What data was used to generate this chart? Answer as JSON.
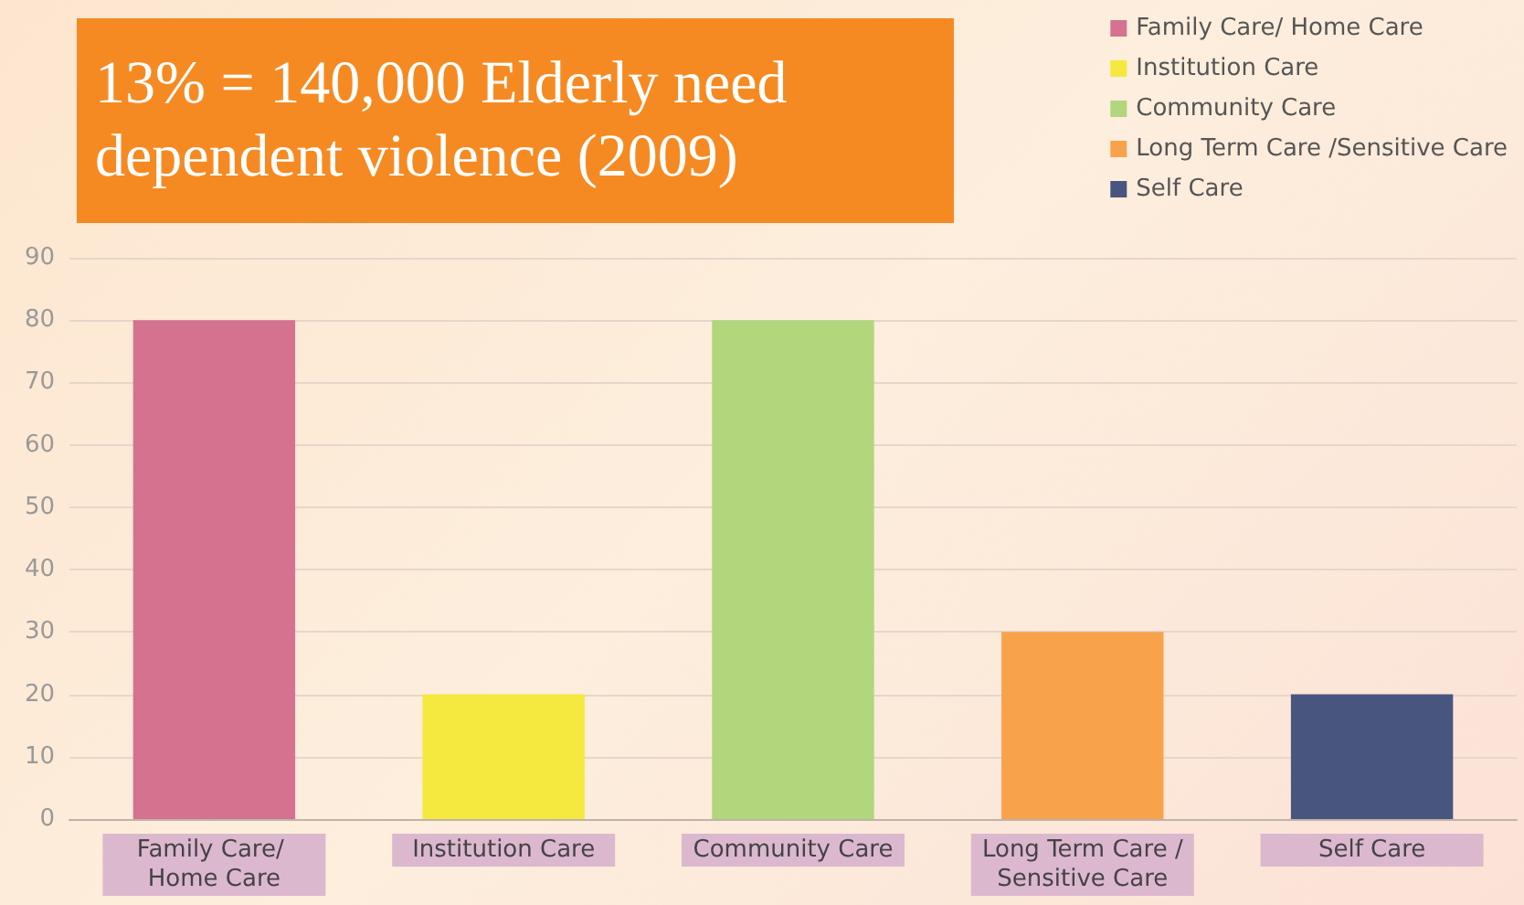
{
  "chart_data": {
    "type": "bar",
    "title": "13% = 140,000 Elderly need dependent violence (2009)",
    "categories": [
      "Family Care/ Home Care",
      "Institution Care",
      "Community Care",
      "Long Term Care /Sensitive Care",
      "Self Care"
    ],
    "series": [
      {
        "name": "Family Care/ Home Care",
        "color": "#d5728f",
        "values": [
          80,
          null,
          null,
          null,
          null
        ]
      },
      {
        "name": "Institution Care",
        "color": "#f5e83e",
        "values": [
          null,
          20,
          null,
          null,
          null
        ]
      },
      {
        "name": "Community Care",
        "color": "#b2d67c",
        "values": [
          null,
          null,
          80,
          null,
          null
        ]
      },
      {
        "name": "Long Term Care /Sensitive Care",
        "color": "#f8a24c",
        "values": [
          null,
          null,
          null,
          30,
          null
        ]
      },
      {
        "name": "Self Care",
        "color": "#48557f",
        "values": [
          null,
          null,
          null,
          null,
          20
        ]
      }
    ],
    "ylim": [
      0,
      90
    ],
    "yticks": [
      0,
      10,
      20,
      30,
      40,
      50,
      60,
      70,
      80,
      90
    ],
    "grid": "y",
    "legend": "top right"
  }
}
